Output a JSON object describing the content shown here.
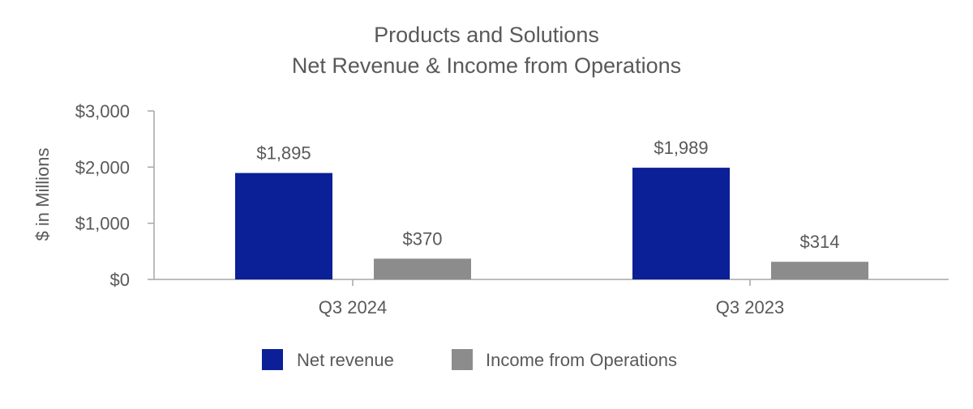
{
  "chart_data": {
    "type": "bar",
    "title_lines": [
      "Products and Solutions",
      "Net Revenue & Income from Operations"
    ],
    "ylabel": "$ in Millions",
    "xlabel": "",
    "categories": [
      "Q3 2024",
      "Q3 2023"
    ],
    "ylim": [
      0,
      3000
    ],
    "yticks": [
      0,
      1000,
      2000,
      3000
    ],
    "ytick_labels": [
      "$0",
      "$1,000",
      "$2,000",
      "$3,000"
    ],
    "series": [
      {
        "name": "Net revenue",
        "color": "#0b1f96",
        "values": [
          1895,
          1989
        ],
        "labels": [
          "$1,895",
          "$1,989"
        ]
      },
      {
        "name": "Income from Operations",
        "color": "#8c8c8c",
        "values": [
          370,
          314
        ],
        "labels": [
          "$370",
          "$314"
        ]
      }
    ],
    "grid": false,
    "legend_position": "bottom"
  }
}
